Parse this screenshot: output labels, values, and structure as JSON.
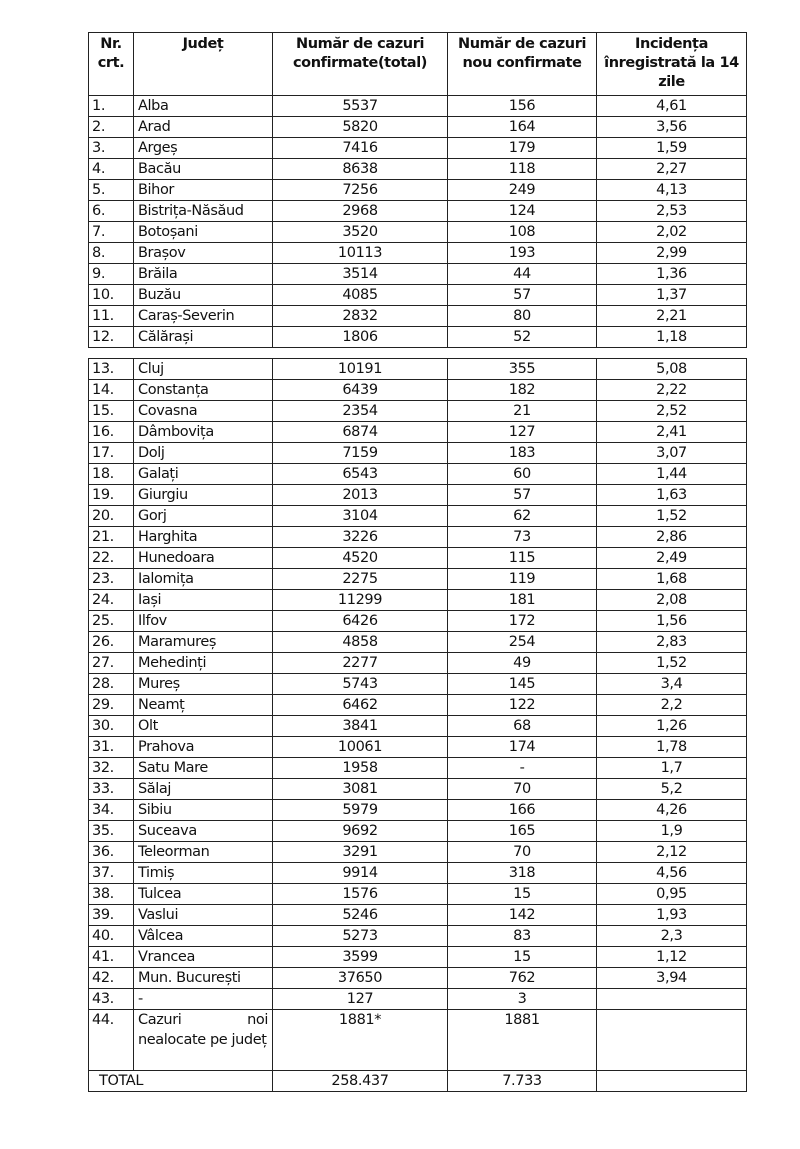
{
  "table": {
    "headers": [
      "Nr. crt.",
      "Județ",
      "Număr de cazuri confirmate(total)",
      "Număr de cazuri nou confirmate",
      "Incidența înregistrată la 14 zile"
    ],
    "rows": [
      [
        "1.",
        "Alba",
        "5537",
        "156",
        "4,61"
      ],
      [
        "2.",
        "Arad",
        "5820",
        "164",
        "3,56"
      ],
      [
        "3.",
        "Argeș",
        "7416",
        "179",
        "1,59"
      ],
      [
        "4.",
        "Bacău",
        "8638",
        "118",
        "2,27"
      ],
      [
        "5.",
        "Bihor",
        "7256",
        "249",
        "4,13"
      ],
      [
        "6.",
        "Bistrița-Năsăud",
        "2968",
        "124",
        "2,53"
      ],
      [
        "7.",
        "Botoșani",
        "3520",
        "108",
        "2,02"
      ],
      [
        "8.",
        "Brașov",
        "10113",
        "193",
        "2,99"
      ],
      [
        "9.",
        "Brăila",
        "3514",
        "44",
        "1,36"
      ],
      [
        "10.",
        "Buzău",
        "4085",
        "57",
        "1,37"
      ],
      [
        "11.",
        "Caraș-Severin",
        "2832",
        "80",
        "2,21"
      ],
      [
        "12.",
        "Călărași",
        "1806",
        "52",
        "1,18"
      ],
      [
        "13.",
        "Cluj",
        "10191",
        "355",
        "5,08"
      ],
      [
        "14.",
        "Constanța",
        "6439",
        "182",
        "2,22"
      ],
      [
        "15.",
        "Covasna",
        "2354",
        "21",
        "2,52"
      ],
      [
        "16.",
        "Dâmbovița",
        "6874",
        "127",
        "2,41"
      ],
      [
        "17.",
        "Dolj",
        "7159",
        "183",
        "3,07"
      ],
      [
        "18.",
        "Galați",
        "6543",
        "60",
        "1,44"
      ],
      [
        "19.",
        "Giurgiu",
        "2013",
        "57",
        "1,63"
      ],
      [
        "20.",
        "Gorj",
        "3104",
        "62",
        "1,52"
      ],
      [
        "21.",
        "Harghita",
        "3226",
        "73",
        "2,86"
      ],
      [
        "22.",
        "Hunedoara",
        "4520",
        "115",
        "2,49"
      ],
      [
        "23.",
        "Ialomița",
        "2275",
        "119",
        "1,68"
      ],
      [
        "24.",
        "Iași",
        "11299",
        "181",
        "2,08"
      ],
      [
        "25.",
        "Ilfov",
        "6426",
        "172",
        "1,56"
      ],
      [
        "26.",
        "Maramureș",
        "4858",
        "254",
        "2,83"
      ],
      [
        "27.",
        "Mehedinți",
        "2277",
        "49",
        "1,52"
      ],
      [
        "28.",
        "Mureș",
        "5743",
        "145",
        "3,4"
      ],
      [
        "29.",
        "Neamț",
        "6462",
        "122",
        "2,2"
      ],
      [
        "30.",
        "Olt",
        "3841",
        "68",
        "1,26"
      ],
      [
        "31.",
        "Prahova",
        "10061",
        "174",
        "1,78"
      ],
      [
        "32.",
        "Satu Mare",
        "1958",
        "-",
        "1,7"
      ],
      [
        "33.",
        "Sălaj",
        "3081",
        "70",
        "5,2"
      ],
      [
        "34.",
        "Sibiu",
        "5979",
        "166",
        "4,26"
      ],
      [
        "35.",
        "Suceava",
        "9692",
        "165",
        "1,9"
      ],
      [
        "36.",
        "Teleorman",
        "3291",
        "70",
        "2,12"
      ],
      [
        "37.",
        "Timiș",
        "9914",
        "318",
        "4,56"
      ],
      [
        "38.",
        "Tulcea",
        "1576",
        "15",
        "0,95"
      ],
      [
        "39.",
        "Vaslui",
        "5246",
        "142",
        "1,93"
      ],
      [
        "40.",
        "Vâlcea",
        "5273",
        "83",
        "2,3"
      ],
      [
        "41.",
        "Vrancea",
        "3599",
        "15",
        "1,12"
      ],
      [
        "42.",
        "Mun. București",
        "37650",
        "762",
        "3,94"
      ],
      [
        "43.",
        "-",
        "127",
        "3",
        ""
      ],
      [
        "44.",
        "Cazuri noi nealocate pe județ",
        "1881*",
        "1881",
        ""
      ]
    ],
    "total": {
      "label": "TOTAL",
      "confirmed": "258.437",
      "new": "7.733",
      "incidence": ""
    }
  }
}
